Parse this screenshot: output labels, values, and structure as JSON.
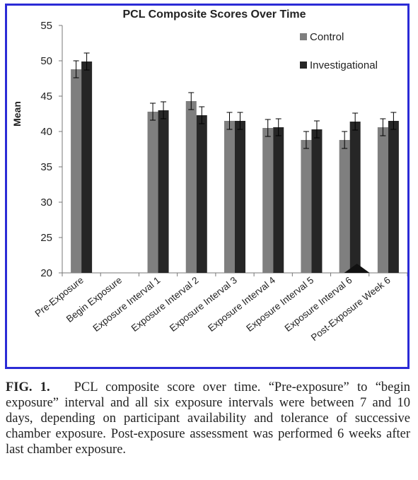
{
  "chart_data": {
    "type": "bar",
    "title": "PCL Composite Scores Over Time",
    "ylabel": "Mean",
    "ylim": [
      20,
      55
    ],
    "yticks": [
      20,
      25,
      30,
      35,
      40,
      45,
      50,
      55
    ],
    "legend_position": "top-right",
    "categories": [
      "Pre-Exposure",
      "Begin Exposure",
      "Exposure Interval 1",
      "Exposure Interval 2",
      "Exposure Interval 3",
      "Exposure Interval 4",
      "Exposure Interval 5",
      "Exposure Interval 6",
      "Post-Exposure Week 6"
    ],
    "series": [
      {
        "name": "Control",
        "color": "#7f7f7f",
        "values": [
          48.8,
          null,
          42.8,
          44.3,
          41.5,
          40.5,
          38.8,
          38.8,
          40.6
        ],
        "errors": [
          1.2,
          null,
          1.2,
          1.2,
          1.2,
          1.2,
          1.2,
          1.2,
          1.2
        ]
      },
      {
        "name": "Investigational",
        "color": "#262626",
        "values": [
          49.9,
          null,
          43.0,
          42.3,
          41.5,
          40.6,
          40.3,
          41.4,
          41.5
        ],
        "errors": [
          1.2,
          null,
          1.2,
          1.2,
          1.2,
          1.2,
          1.2,
          1.2,
          1.2
        ]
      }
    ],
    "annotations": [
      {
        "shape": "triangle",
        "category": "Exposure Interval 6",
        "color": "#111111"
      }
    ]
  },
  "caption": {
    "label": "FIG. 1.",
    "text": "PCL composite score over time. “Pre-exposure” to “begin exposure” interval and all six exposure intervals were between 7 and 10 days, depending on participant availability and tolerance of successive chamber exposure. Post-exposure assessment was performed 6 weeks after last chamber exposure."
  }
}
